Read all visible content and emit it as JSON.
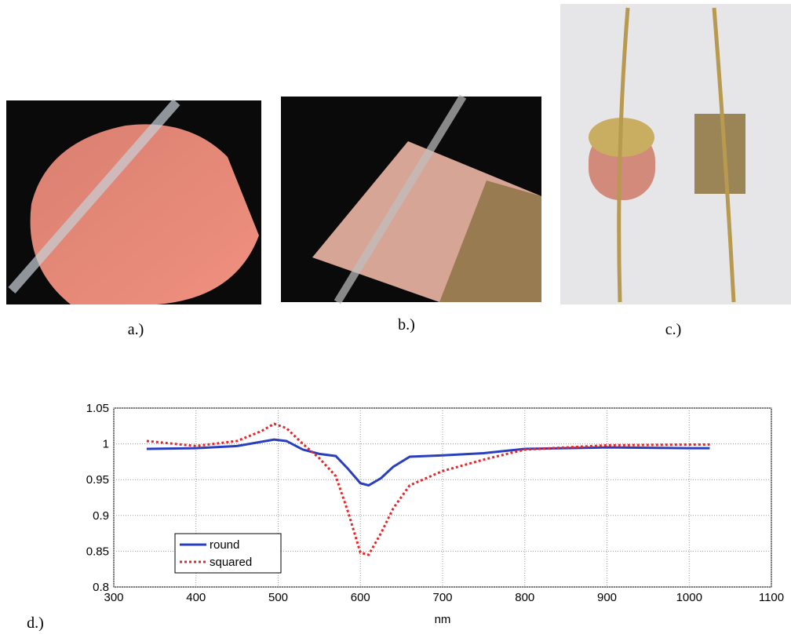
{
  "panels": [
    {
      "label": "a.)"
    },
    {
      "label": "b.)"
    },
    {
      "label": "c.)"
    },
    {
      "label": "d.)"
    }
  ],
  "chart_data": {
    "type": "line",
    "xlabel": "nm",
    "x": [
      340,
      400,
      450,
      480,
      495,
      510,
      530,
      550,
      570,
      585,
      600,
      610,
      625,
      640,
      660,
      700,
      750,
      800,
      900,
      1000,
      1025
    ],
    "series": [
      {
        "name": "round",
        "color": "#2a3fbf",
        "style": "solid",
        "values": [
          0.993,
          0.994,
          0.997,
          1.003,
          1.006,
          1.004,
          0.992,
          0.986,
          0.983,
          0.965,
          0.945,
          0.942,
          0.952,
          0.968,
          0.982,
          0.984,
          0.987,
          0.993,
          0.995,
          0.994,
          0.994
        ]
      },
      {
        "name": "squared",
        "color": "#e8262a",
        "style": "dotted",
        "values": [
          1.004,
          0.997,
          1.004,
          1.018,
          1.028,
          1.022,
          1.0,
          0.98,
          0.955,
          0.905,
          0.848,
          0.845,
          0.875,
          0.91,
          0.942,
          0.962,
          0.978,
          0.992,
          0.998,
          0.999,
          0.999
        ]
      }
    ],
    "xlim": [
      300,
      1100
    ],
    "xticks": [
      300,
      400,
      500,
      600,
      700,
      800,
      900,
      1000,
      1100
    ],
    "ylim": [
      0.8,
      1.05
    ],
    "yticks": [
      0.8,
      0.85,
      0.9,
      0.95,
      1,
      1.05
    ],
    "grid": true,
    "legend": "lower-left"
  }
}
